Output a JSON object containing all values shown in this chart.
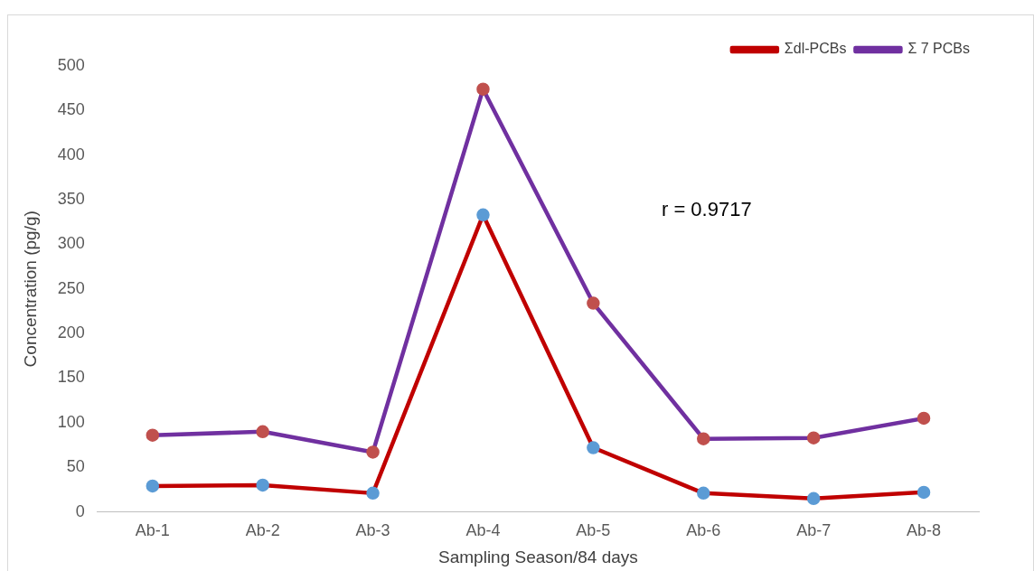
{
  "chart_data": {
    "type": "line",
    "xlabel": "Sampling Season/84 days",
    "ylabel": "Concentration (pg/g)",
    "categories": [
      "Ab-1",
      "Ab-2",
      "Ab-3",
      "Ab-4",
      "Ab-5",
      "Ab-6",
      "Ab-7",
      "Ab-8"
    ],
    "series": [
      {
        "name": "Σdl-PCBs",
        "color": "#c00000",
        "values": [
          29,
          30,
          21,
          333,
          72,
          21,
          15,
          22
        ]
      },
      {
        "name": "Σ 7 PCBs",
        "color": "#7030a0",
        "values": [
          86,
          90,
          67,
          474,
          234,
          82,
          83,
          105
        ]
      }
    ],
    "ylim": [
      0,
      500
    ],
    "yticks": [
      0,
      50,
      100,
      150,
      200,
      250,
      300,
      350,
      400,
      450,
      500
    ],
    "grid": false,
    "legend": "top right",
    "marker": "circle",
    "line_style": "solid",
    "annotations": [
      "r = 0.9717"
    ]
  }
}
